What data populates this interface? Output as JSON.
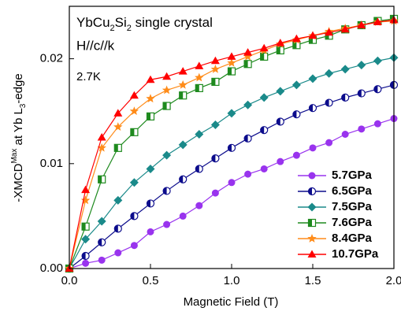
{
  "chart_data": {
    "type": "line",
    "annotations": [
      [
        "YbCu",
        "2",
        "Si",
        "2",
        " single crystal"
      ],
      [
        "H//c//k"
      ],
      [
        "2.7K"
      ]
    ],
    "x_label": "Magnetic Field (T)",
    "y_label": [
      "-XMCD",
      "Max",
      " at Yb L",
      "3",
      "-edge"
    ],
    "x": [
      0,
      0.1,
      0.2,
      0.3,
      0.4,
      0.5,
      0.6,
      0.7,
      0.8,
      0.9,
      1.0,
      1.1,
      1.2,
      1.3,
      1.4,
      1.5,
      1.6,
      1.7,
      1.8,
      1.9,
      2.0
    ],
    "series": [
      {
        "name": "5.7GPa",
        "color": "#9933ee",
        "marker": "circle",
        "values": [
          0,
          0.0005,
          0.0008,
          0.0015,
          0.0022,
          0.0035,
          0.0042,
          0.005,
          0.006,
          0.0072,
          0.0082,
          0.009,
          0.0095,
          0.0102,
          0.0108,
          0.0115,
          0.012,
          0.0128,
          0.0133,
          0.0138,
          0.0143
        ]
      },
      {
        "name": "6.5GPa",
        "color": "#0c0c8c",
        "marker": "half-circle",
        "values": [
          0,
          0.0012,
          0.0025,
          0.0038,
          0.005,
          0.0062,
          0.0074,
          0.0085,
          0.0095,
          0.0105,
          0.0115,
          0.0124,
          0.0132,
          0.014,
          0.0147,
          0.0153,
          0.0158,
          0.0163,
          0.0167,
          0.0171,
          0.0175
        ]
      },
      {
        "name": "7.5GPa",
        "color": "#1a8a8a",
        "marker": "diamond",
        "values": [
          0,
          0.0028,
          0.0045,
          0.0065,
          0.0082,
          0.0095,
          0.0108,
          0.0118,
          0.0128,
          0.0137,
          0.0148,
          0.0156,
          0.0163,
          0.0169,
          0.0175,
          0.0181,
          0.0186,
          0.019,
          0.0194,
          0.0198,
          0.0201
        ]
      },
      {
        "name": "7.6GPa",
        "color": "#1e8a1e",
        "marker": "half-square",
        "values": [
          0,
          0.004,
          0.0085,
          0.0115,
          0.013,
          0.0145,
          0.0155,
          0.0165,
          0.0172,
          0.0178,
          0.0188,
          0.0195,
          0.0202,
          0.0208,
          0.0213,
          0.0218,
          0.0222,
          0.0228,
          0.0232,
          0.0236,
          0.0238
        ]
      },
      {
        "name": "8.4GPa",
        "color": "#ff8c1a",
        "marker": "star",
        "values": [
          0,
          0.0065,
          0.0115,
          0.0135,
          0.015,
          0.0162,
          0.017,
          0.0175,
          0.0182,
          0.019,
          0.0196,
          0.0202,
          0.0208,
          0.0214,
          0.0218,
          0.0222,
          0.0226,
          0.0229,
          0.0232,
          0.0235,
          0.0236
        ]
      },
      {
        "name": "10.7GPa",
        "color": "#ff0000",
        "marker": "triangle",
        "values": [
          0,
          0.0075,
          0.0125,
          0.0148,
          0.0165,
          0.018,
          0.0183,
          0.0188,
          0.0193,
          0.0198,
          0.0202,
          0.0206,
          0.021,
          0.0215,
          0.0219,
          0.0222,
          0.0225,
          0.0228,
          0.0232,
          0.0235,
          0.0237
        ]
      }
    ],
    "xlim": [
      0,
      2.0
    ],
    "xticks": [
      {
        "value": 0,
        "label": "0.0"
      },
      0.5,
      {
        "value": 1,
        "label": "1.0"
      },
      1.5,
      {
        "value": 2,
        "label": "2.0"
      }
    ],
    "ylim": [
      0,
      0.025
    ],
    "yticks": [
      {
        "value": 0,
        "label": "0.00"
      },
      0.01,
      0.02
    ],
    "legend": "lower right"
  }
}
